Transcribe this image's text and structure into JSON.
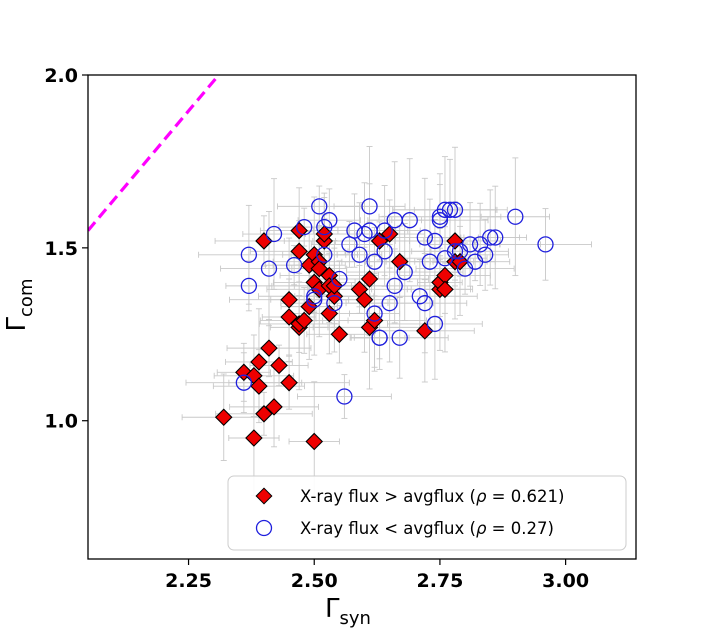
{
  "chart_data": {
    "type": "scatter",
    "xlim": [
      2.05,
      3.14
    ],
    "ylim": [
      0.6,
      2.0
    ],
    "x_ticks": [
      "2.25",
      "2.50",
      "2.75",
      "3.00"
    ],
    "y_ticks": [
      "1.0",
      "1.5",
      "2.0"
    ],
    "xlabel": {
      "base": "Γ",
      "sub": "syn"
    },
    "ylabel": {
      "base": "Γ",
      "sub": "com"
    },
    "legend_position": "lower right",
    "grid": false,
    "reference_line": {
      "style": "dashed",
      "color": "#ff00ff",
      "points": [
        [
          2.05,
          1.55
        ],
        [
          2.31,
          2.0
        ]
      ]
    },
    "series": [
      {
        "name": "X-ray flux  > avgflux",
        "rho_text": "0.621",
        "marker": "diamond",
        "fill": "#ee0000",
        "edge": "#000000",
        "points": [
          [
            2.32,
            1.01
          ],
          [
            2.36,
            1.14
          ],
          [
            2.38,
            1.13
          ],
          [
            2.38,
            0.95
          ],
          [
            2.39,
            1.1
          ],
          [
            2.39,
            1.17
          ],
          [
            2.4,
            1.02
          ],
          [
            2.41,
            1.21
          ],
          [
            2.4,
            1.52
          ],
          [
            2.42,
            1.04
          ],
          [
            2.43,
            1.16
          ],
          [
            2.45,
            1.35
          ],
          [
            2.45,
            1.3
          ],
          [
            2.45,
            1.11
          ],
          [
            2.47,
            1.55
          ],
          [
            2.47,
            1.49
          ],
          [
            2.47,
            1.27
          ],
          [
            2.47,
            1.28
          ],
          [
            2.48,
            1.29
          ],
          [
            2.49,
            1.33
          ],
          [
            2.49,
            1.45
          ],
          [
            2.5,
            0.94
          ],
          [
            2.5,
            1.48
          ],
          [
            2.5,
            1.4
          ],
          [
            2.51,
            1.46
          ],
          [
            2.51,
            1.38
          ],
          [
            2.51,
            1.44
          ],
          [
            2.52,
            1.52
          ],
          [
            2.52,
            1.54
          ],
          [
            2.53,
            1.42
          ],
          [
            2.53,
            1.39
          ],
          [
            2.53,
            1.31
          ],
          [
            2.54,
            1.36
          ],
          [
            2.54,
            1.39
          ],
          [
            2.55,
            1.25
          ],
          [
            2.59,
            1.38
          ],
          [
            2.6,
            1.35
          ],
          [
            2.61,
            1.27
          ],
          [
            2.61,
            1.41
          ],
          [
            2.62,
            1.29
          ],
          [
            2.63,
            1.52
          ],
          [
            2.65,
            1.54
          ],
          [
            2.67,
            1.46
          ],
          [
            2.72,
            1.26
          ],
          [
            2.75,
            1.38
          ],
          [
            2.75,
            1.4
          ],
          [
            2.76,
            1.42
          ],
          [
            2.76,
            1.38
          ],
          [
            2.78,
            1.46
          ],
          [
            2.78,
            1.52
          ],
          [
            2.79,
            1.46
          ]
        ]
      },
      {
        "name": "X-ray flux  < avgflux",
        "rho_text": "0.27",
        "marker": "circle",
        "fill": "none",
        "edge": "#1f1fdd",
        "points": [
          [
            2.36,
            1.11
          ],
          [
            2.37,
            1.39
          ],
          [
            2.37,
            1.48
          ],
          [
            2.41,
            1.44
          ],
          [
            2.42,
            1.54
          ],
          [
            2.46,
            1.45
          ],
          [
            2.48,
            1.56
          ],
          [
            2.5,
            1.35
          ],
          [
            2.5,
            1.36
          ],
          [
            2.51,
            1.62
          ],
          [
            2.52,
            1.48
          ],
          [
            2.52,
            1.56
          ],
          [
            2.53,
            1.58
          ],
          [
            2.54,
            1.34
          ],
          [
            2.55,
            1.41
          ],
          [
            2.56,
            1.07
          ],
          [
            2.57,
            1.51
          ],
          [
            2.58,
            1.55
          ],
          [
            2.59,
            1.48
          ],
          [
            2.6,
            1.54
          ],
          [
            2.61,
            1.62
          ],
          [
            2.61,
            1.55
          ],
          [
            2.62,
            1.46
          ],
          [
            2.62,
            1.31
          ],
          [
            2.63,
            1.24
          ],
          [
            2.63,
            1.24
          ],
          [
            2.64,
            1.55
          ],
          [
            2.64,
            1.49
          ],
          [
            2.65,
            1.34
          ],
          [
            2.66,
            1.39
          ],
          [
            2.66,
            1.58
          ],
          [
            2.67,
            1.24
          ],
          [
            2.68,
            1.43
          ],
          [
            2.69,
            1.58
          ],
          [
            2.71,
            1.36
          ],
          [
            2.72,
            1.34
          ],
          [
            2.72,
            1.53
          ],
          [
            2.73,
            1.46
          ],
          [
            2.74,
            1.28
          ],
          [
            2.74,
            1.52
          ],
          [
            2.75,
            1.59
          ],
          [
            2.75,
            1.58
          ],
          [
            2.76,
            1.61
          ],
          [
            2.76,
            1.47
          ],
          [
            2.77,
            1.61
          ],
          [
            2.78,
            1.49
          ],
          [
            2.78,
            1.61
          ],
          [
            2.79,
            1.49
          ],
          [
            2.8,
            1.44
          ],
          [
            2.81,
            1.51
          ],
          [
            2.82,
            1.46
          ],
          [
            2.83,
            1.51
          ],
          [
            2.84,
            1.48
          ],
          [
            2.85,
            1.53
          ],
          [
            2.86,
            1.53
          ],
          [
            2.9,
            1.59
          ],
          [
            2.96,
            1.51
          ]
        ]
      }
    ]
  }
}
